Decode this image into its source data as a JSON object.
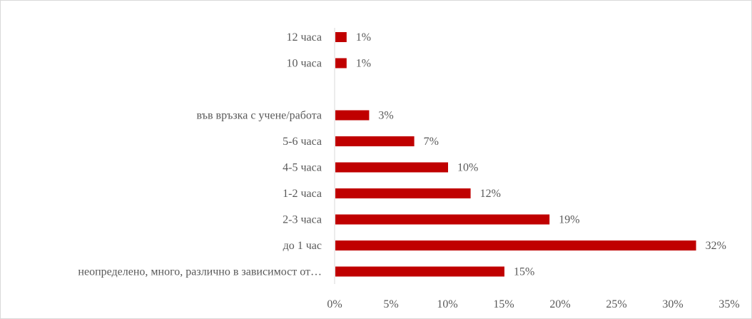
{
  "chart_data": {
    "type": "bar",
    "orientation": "horizontal",
    "categories": [
      "12 часа",
      "10 часа",
      "",
      "във връзка с учене/работа",
      "5-6 часа",
      "4-5 часа",
      "1-2 часа",
      "2-3 часа",
      "до 1 час",
      "неопределено, много, различно в зависимост от…"
    ],
    "values": [
      1,
      1,
      null,
      3,
      7,
      10,
      12,
      19,
      32,
      15
    ],
    "value_labels": [
      "1%",
      "1%",
      "",
      "3%",
      "7%",
      "10%",
      "12%",
      "19%",
      "32%",
      "15%"
    ],
    "x_ticks": [
      0,
      5,
      10,
      15,
      20,
      25,
      30,
      35
    ],
    "x_tick_labels": [
      "0%",
      "5%",
      "10%",
      "15%",
      "20%",
      "25%",
      "30%",
      "35%"
    ],
    "xlim": [
      0,
      35
    ],
    "grid": false,
    "legend": "none",
    "bar_color": "#c00000",
    "axis_color": "#d9d9d9",
    "text_color": "#595959"
  }
}
